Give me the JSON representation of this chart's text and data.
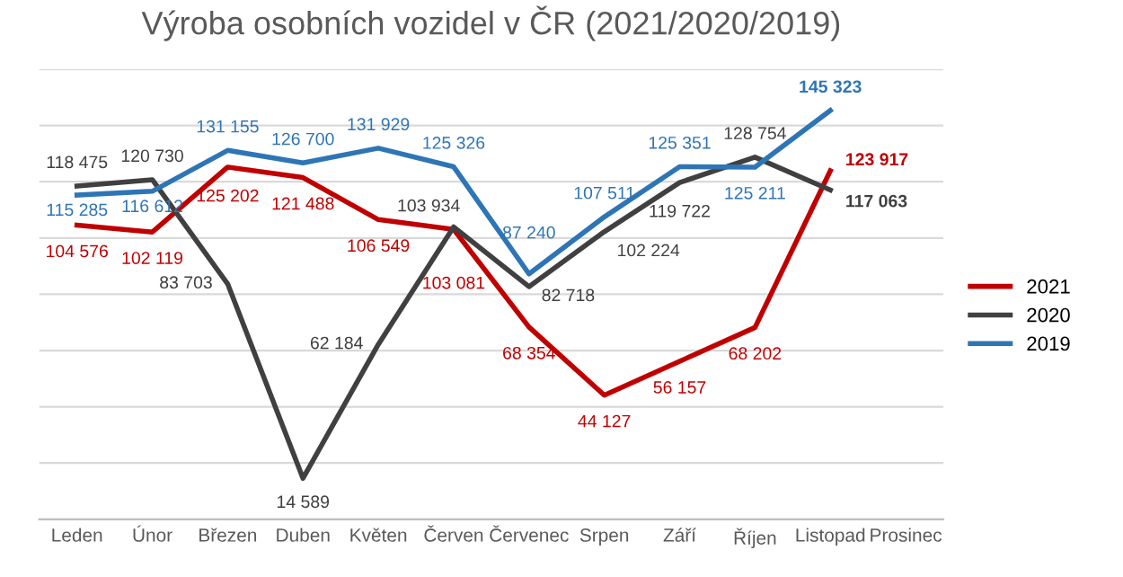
{
  "chart_data": {
    "type": "line",
    "title": "Výroba osobních vozidel v ČR (2021/2020/2019)",
    "categories": [
      "Leden",
      "Únor",
      "Březen",
      "Duben",
      "Květen",
      "Červen",
      "Červenec",
      "Srpen",
      "Září",
      "Říjen",
      "Listopad",
      "Prosinec"
    ],
    "series": [
      {
        "name": "2021",
        "color": "#c00000",
        "values": [
          104576,
          102119,
          125202,
          121488,
          106549,
          103081,
          68354,
          44127,
          56157,
          68202,
          123917,
          null
        ]
      },
      {
        "name": "2020",
        "color": "#404040",
        "values": [
          118475,
          120730,
          83703,
          14589,
          62184,
          103934,
          82718,
          102224,
          119722,
          128754,
          117063,
          null
        ]
      },
      {
        "name": "2019",
        "color": "#2e75b6",
        "values": [
          115285,
          116612,
          131155,
          126700,
          131929,
          125326,
          87240,
          107511,
          125351,
          125211,
          145323,
          null
        ]
      }
    ],
    "ylim": [
      0,
      160000
    ],
    "yticks": [
      {
        "value": 0,
        "label": null
      },
      {
        "value": 20000,
        "label": null
      },
      {
        "value": 40000,
        "label": null
      },
      {
        "value": 60000,
        "label": null
      },
      {
        "value": 80000,
        "label": null
      },
      {
        "value": 100000,
        "label": null
      },
      {
        "value": 120000,
        "label": null
      },
      {
        "value": 140000,
        "label": null
      },
      {
        "value": 160000,
        "label": null
      }
    ],
    "tick_labels": "x",
    "grid": "y",
    "legend": "right",
    "data_labels": true,
    "marker": "none",
    "line_style": "solid"
  }
}
